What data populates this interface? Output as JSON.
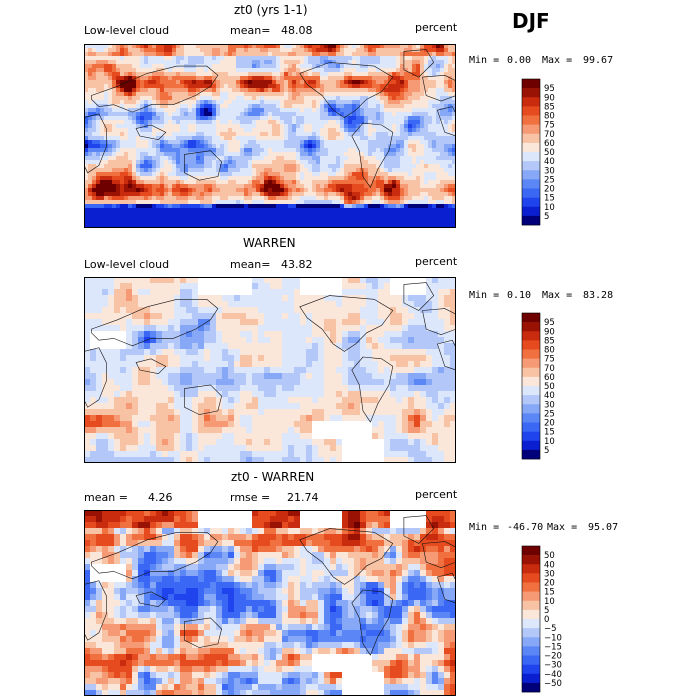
{
  "season": "DJF",
  "panels": [
    {
      "title": "zt0 (yrs 1-1)",
      "left_label": "Low-level cloud",
      "mean_label": "mean=",
      "mean_value": "48.08",
      "units": "percent",
      "min_label": "Min =",
      "min_value": "0.00",
      "max_label": "Max =",
      "max_value": "99.67",
      "colorbar_ticks": [
        "95",
        "90",
        "85",
        "80",
        "75",
        "70",
        "60",
        "50",
        "40",
        "30",
        "25",
        "20",
        "15",
        "10",
        "5"
      ]
    },
    {
      "title": "WARREN",
      "left_label": "Low-level cloud",
      "mean_label": "mean=",
      "mean_value": "43.82",
      "units": "percent",
      "min_label": "Min =",
      "min_value": "0.10",
      "max_label": "Max =",
      "max_value": "83.28",
      "colorbar_ticks": [
        "95",
        "90",
        "85",
        "80",
        "75",
        "70",
        "60",
        "50",
        "40",
        "30",
        "25",
        "20",
        "15",
        "10",
        "5"
      ]
    },
    {
      "title": "zt0 - WARREN",
      "left_label": "mean =",
      "left_value": "4.26",
      "rmse_label": "rmse =",
      "rmse_value": "21.74",
      "units": "percent",
      "min_label": "Min =",
      "min_value": "-46.70",
      "max_label": "Max =",
      "max_value": "95.07",
      "colorbar_ticks": [
        "50",
        "40",
        "30",
        "20",
        "15",
        "10",
        "5",
        "0",
        "−5",
        "−10",
        "−15",
        "−20",
        "−30",
        "−40",
        "−50"
      ]
    }
  ],
  "chart_data": [
    {
      "type": "heatmap",
      "title": "zt0 (yrs 1-1)",
      "variable": "Low-level cloud",
      "units": "percent",
      "mean": 48.08,
      "min": 0.0,
      "max": 99.67,
      "colorbar_levels": [
        5,
        10,
        15,
        20,
        25,
        30,
        40,
        50,
        60,
        70,
        75,
        80,
        85,
        90,
        95
      ],
      "colors": [
        "#00007a",
        "#0a1fd0",
        "#1f44ee",
        "#3a68f4",
        "#5b86f5",
        "#86a8f6",
        "#b3c8f8",
        "#dde7fb",
        "#fbe6da",
        "#f8c2a4",
        "#f59a74",
        "#f0703f",
        "#e54b1f",
        "#c92b0e",
        "#9a1204",
        "#6e0000"
      ]
    },
    {
      "type": "heatmap",
      "title": "WARREN",
      "variable": "Low-level cloud",
      "units": "percent",
      "mean": 43.82,
      "min": 0.1,
      "max": 83.28,
      "colorbar_levels": [
        5,
        10,
        15,
        20,
        25,
        30,
        40,
        50,
        60,
        70,
        75,
        80,
        85,
        90,
        95
      ],
      "colors": [
        "#00007a",
        "#0a1fd0",
        "#1f44ee",
        "#3a68f4",
        "#5b86f5",
        "#86a8f6",
        "#b3c8f8",
        "#dde7fb",
        "#fbe6da",
        "#f8c2a4",
        "#f59a74",
        "#f0703f",
        "#e54b1f",
        "#c92b0e",
        "#9a1204",
        "#6e0000"
      ]
    },
    {
      "type": "heatmap",
      "title": "zt0 - WARREN",
      "units": "percent",
      "mean": 4.26,
      "rmse": 21.74,
      "min": -46.7,
      "max": 95.07,
      "colorbar_levels": [
        -50,
        -40,
        -30,
        -20,
        -15,
        -10,
        -5,
        0,
        5,
        10,
        15,
        20,
        30,
        40,
        50
      ],
      "colors": [
        "#00007a",
        "#0a1fd0",
        "#1f44ee",
        "#3a68f4",
        "#5b86f5",
        "#86a8f6",
        "#b3c8f8",
        "#dde7fb",
        "#fbe6da",
        "#f8c2a4",
        "#f59a74",
        "#f0703f",
        "#e54b1f",
        "#c92b0e",
        "#9a1204",
        "#6e0000"
      ]
    }
  ]
}
